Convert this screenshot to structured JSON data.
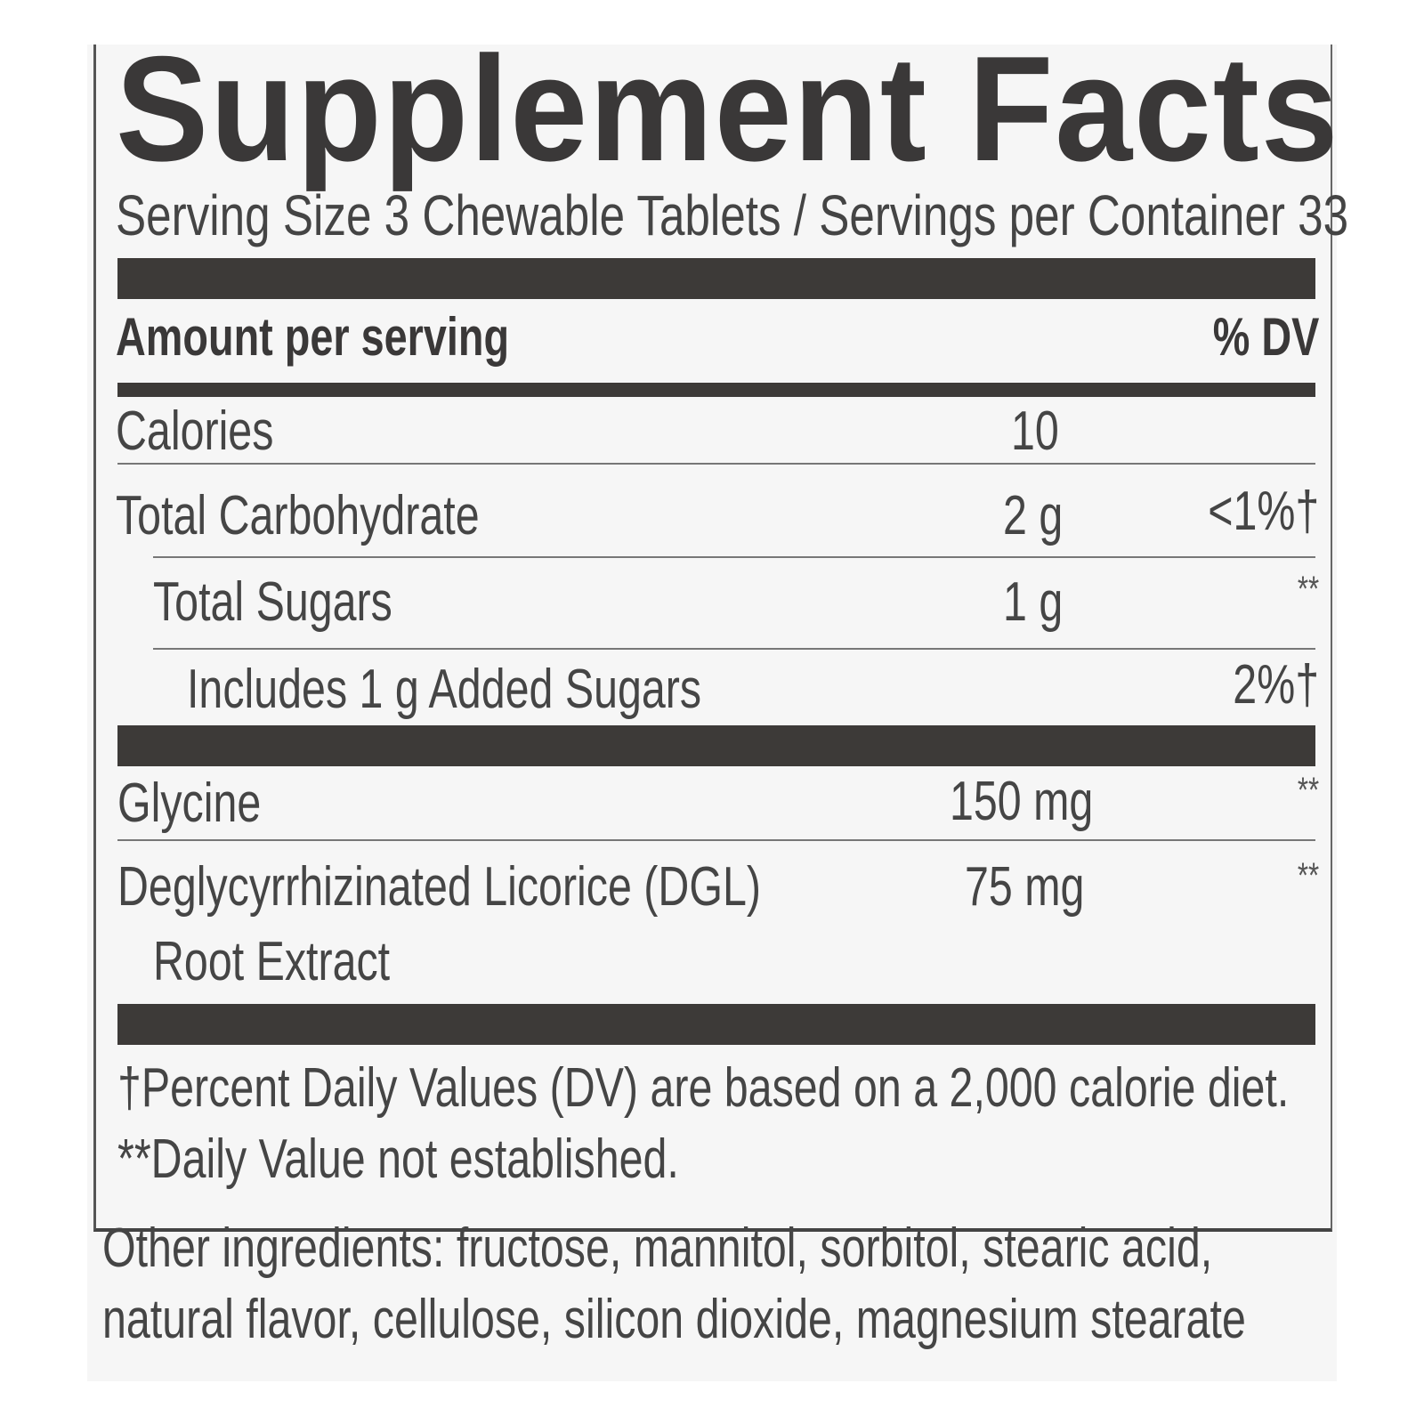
{
  "label": {
    "title": "Supplement Facts",
    "serving": "Serving Size 3 Chewable Tablets / Servings per Container 33",
    "header": {
      "amount": "Amount per serving",
      "dv": "% DV"
    },
    "rows": [
      {
        "name": "Calories",
        "amount": "10",
        "dv": ""
      },
      {
        "name": "Total Carbohydrate",
        "amount": "2 g",
        "dv": "<1%†"
      },
      {
        "name": "Total Sugars",
        "amount": "1 g",
        "dv": "**"
      },
      {
        "name": "Includes 1 g Added Sugars",
        "amount": "",
        "dv": "2%†"
      },
      {
        "name": "Glycine",
        "amount": "150 mg",
        "dv": "**"
      },
      {
        "name": "Deglycyrrhizinated Licorice (DGL)",
        "name_line2": "Root Extract",
        "amount": "75 mg",
        "dv": "**"
      }
    ],
    "footnotes": [
      "†Percent Daily Values (DV) are based on a 2,000 calorie diet.",
      "**Daily Value not established."
    ]
  },
  "other_ingredients": [
    "Other ingredients: fructose, mannitol, sorbitol, stearic acid,",
    "natural flavor, cellulose, silicon dioxide, magnesium stearate"
  ],
  "colors": {
    "ink": "#3c3b3b",
    "panel": "#f6f6f6"
  }
}
